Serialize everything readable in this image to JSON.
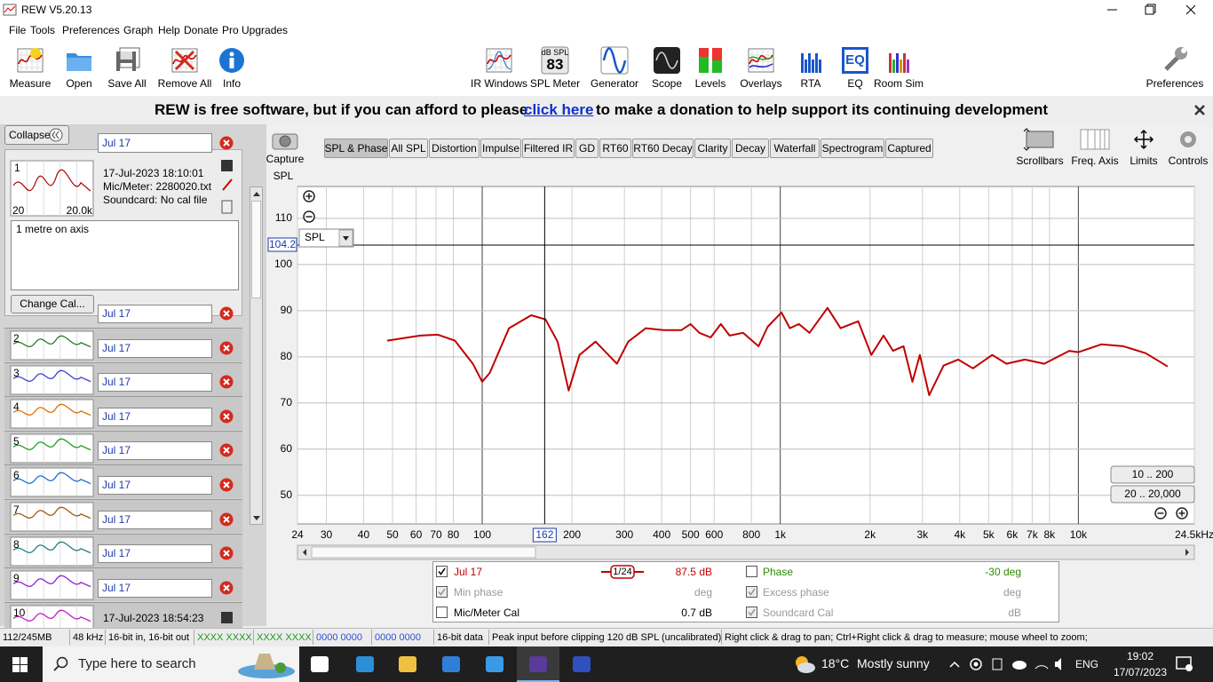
{
  "window": {
    "title": "REW V5.20.13"
  },
  "menu": [
    "File",
    "Tools",
    "Preferences",
    "Graph",
    "Help",
    "Donate",
    "Pro Upgrades"
  ],
  "toolbar": {
    "left": [
      "Measure",
      "Open",
      "Save All",
      "Remove All",
      "Info"
    ],
    "tools": [
      "IR Windows",
      "SPL Meter",
      "Generator",
      "Scope",
      "Levels",
      "Overlays",
      "RTA",
      "EQ",
      "Room Sim"
    ],
    "spl_meter_unit": "dB SPL",
    "spl_meter_reading": 83,
    "eq_icon": "EQ",
    "right": "Preferences"
  },
  "banner": {
    "text_before": "REW is free software, but if you can afford to please",
    "link": "click here",
    "text_after": "to make a donation to help support its continuing development"
  },
  "measurements": {
    "collapse": "Collapse",
    "change_cal": "Change Cal...",
    "selected": {
      "number": 1,
      "name": "Jul 17",
      "color": "#b01010",
      "date": "17-Jul-2023 18:10:01",
      "mic": "Mic/Meter: 2280020.txt",
      "soundcard": "Soundcard: No cal file",
      "thumb_min": "20",
      "thumb_max": "20.0k",
      "notes": "1 metre on axis"
    },
    "list": [
      {
        "number": 2,
        "name": "Jul 17",
        "color": "#2a7a2a"
      },
      {
        "number": 3,
        "name": "Jul 17",
        "color": "#4040d0"
      },
      {
        "number": 4,
        "name": "Jul 17",
        "color": "#e07000"
      },
      {
        "number": 5,
        "name": "Jul 17",
        "color": "#20a020"
      },
      {
        "number": 6,
        "name": "Jul 17",
        "color": "#2070d0"
      },
      {
        "number": 7,
        "name": "Jul 17",
        "color": "#a05a10"
      },
      {
        "number": 8,
        "name": "Jul 17",
        "color": "#208080"
      },
      {
        "number": 9,
        "name": "Jul 17",
        "color": "#9020d0"
      },
      {
        "number": 10,
        "name": "Jul 17",
        "color": "#c020c0",
        "date": "17-Jul-2023 18:54:23"
      }
    ]
  },
  "graph_panel": {
    "capture": "Capture",
    "tabs": [
      "SPL & Phase",
      "All SPL",
      "Distortion",
      "Impulse",
      "Filtered IR",
      "GD",
      "RT60",
      "RT60 Decay",
      "Clarity",
      "Decay",
      "Waterfall",
      "Spectrogram",
      "Captured"
    ],
    "active_tab": 0,
    "controls": [
      "Scrollbars",
      "Freq. Axis",
      "Limits",
      "Controls"
    ],
    "range_buttons": [
      "10 .. 200",
      "20 .. 20,000"
    ],
    "dropdown": "SPL"
  },
  "chart_data": {
    "type": "line",
    "y_label": "SPL",
    "x_scale": "log",
    "xlim": [
      24,
      24500
    ],
    "ylim": [
      43.8,
      116.9
    ],
    "yticks": [
      50,
      60,
      70,
      80,
      90,
      100,
      110
    ],
    "xticks": [
      24,
      30,
      40,
      50,
      60,
      70,
      80,
      100,
      200,
      300,
      400,
      500,
      600,
      800,
      {
        "value": 1000,
        "label": "1k"
      },
      {
        "value": 2000,
        "label": "2k"
      },
      {
        "value": 3000,
        "label": "3k"
      },
      {
        "value": 4000,
        "label": "4k"
      },
      {
        "value": 5000,
        "label": "5k"
      },
      {
        "value": 6000,
        "label": "6k"
      },
      {
        "value": 7000,
        "label": "7k"
      },
      {
        "value": 8000,
        "label": "8k"
      },
      {
        "value": 10000,
        "label": "10k"
      },
      {
        "value": 24500,
        "label": "24.5kHz"
      }
    ],
    "grid": true,
    "cursor": {
      "x": 162,
      "y": 104.2
    },
    "series": [
      {
        "name": "Jul 17",
        "color": "#c00000",
        "x": [
          48,
          62,
          71,
          81,
          93,
          100,
          106,
          123,
          146,
          163,
          179,
          195,
          212,
          240,
          283,
          309,
          354,
          406,
          466,
          500,
          535,
          584,
          632,
          676,
          750,
          845,
          907,
          1009,
          1077,
          1155,
          1253,
          1440,
          1593,
          1826,
          2020,
          2220,
          2389,
          2591,
          2776,
          2940,
          3160,
          3530,
          3950,
          4430,
          5140,
          5740,
          6620,
          7680,
          9320,
          10000,
          11940,
          14150,
          16810,
          19930
        ],
        "values": [
          83.5,
          84.6,
          84.8,
          83.5,
          78.5,
          74.6,
          76.5,
          86.2,
          89.0,
          88.1,
          83.3,
          72.7,
          80.4,
          83.3,
          78.5,
          83.3,
          86.2,
          85.8,
          85.8,
          87.1,
          85.2,
          84.2,
          87.1,
          84.6,
          85.2,
          82.3,
          86.5,
          89.6,
          86.2,
          87.1,
          85.2,
          90.6,
          86.2,
          87.7,
          80.4,
          84.6,
          81.3,
          82.3,
          74.6,
          80.4,
          71.7,
          78.1,
          79.4,
          77.5,
          80.4,
          78.5,
          79.4,
          78.5,
          81.3,
          81.0,
          82.7,
          82.3,
          80.8,
          77.9
        ]
      }
    ]
  },
  "legend": {
    "smoothing": "1/24",
    "rows": [
      {
        "checked": true,
        "value": "87.5 dB",
        "right_checked": false,
        "right_name": "Phase",
        "right_value": "-30 deg",
        "right_color": "#2e8b00"
      },
      {
        "checked": true,
        "disabled": true,
        "name": "Min phase",
        "value": "deg",
        "right_checked": true,
        "right_disabled": true,
        "right_name": "Excess phase",
        "right_value": "deg"
      },
      {
        "checked": false,
        "name": "Mic/Meter Cal",
        "value": "0.7 dB",
        "right_checked": true,
        "right_disabled": true,
        "right_name": "Soundcard Cal",
        "right_value": "dB"
      }
    ]
  },
  "status": [
    {
      "text": "112/245MB"
    },
    {
      "text": "48 kHz"
    },
    {
      "text": "16-bit in, 16-bit out"
    },
    {
      "text": "XXXX XXXX",
      "color": "#1a9a1a"
    },
    {
      "text": "XXXX XXXX",
      "color": "#1a9a1a"
    },
    {
      "text": "0000 0000",
      "color": "#3050d0"
    },
    {
      "text": "0000 0000",
      "color": "#3050d0"
    },
    {
      "text": "16-bit data"
    },
    {
      "text": "Peak input before clipping 120 dB SPL (uncalibrated)"
    },
    {
      "text": "Right click & drag to pan; Ctrl+Right click & drag to measure; mouse wheel to zoom;"
    }
  ],
  "taskbar": {
    "search": "Type here to search",
    "temperature": "18°C",
    "weather": "Mostly sunny",
    "language": "ENG",
    "time": "19:02",
    "date": "17/07/2023"
  }
}
